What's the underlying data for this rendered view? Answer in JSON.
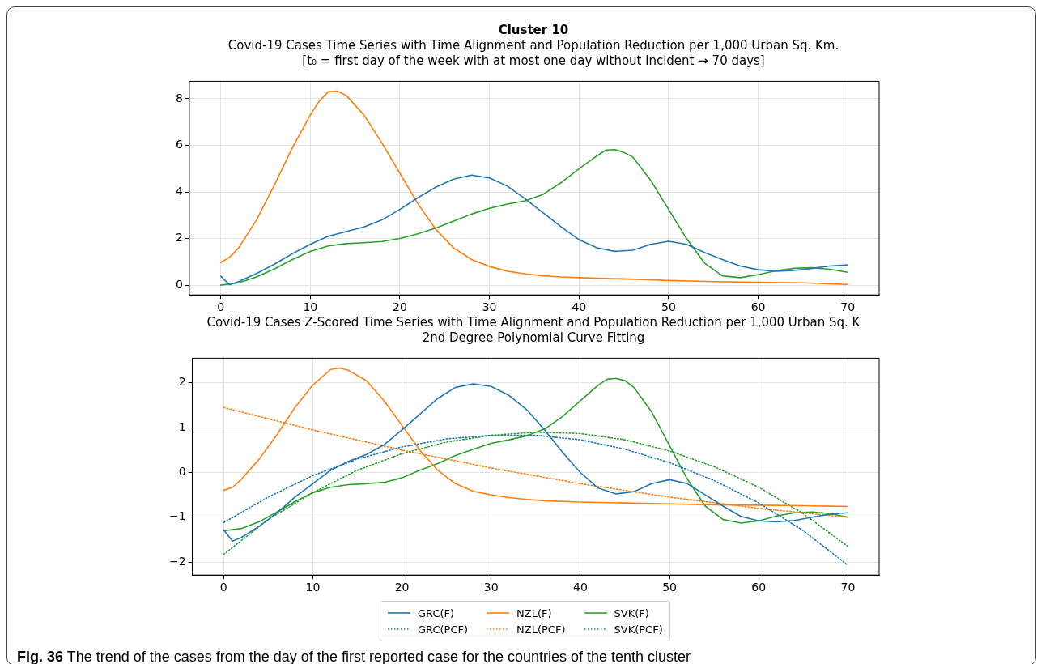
{
  "chart_data": [
    {
      "type": "line",
      "title": "Cluster 10",
      "subtitle": "Covid-19 Cases Time Series with Time Alignment and Population Reduction per 1,000 Urban Sq. Km.\n[t₀ = first day of the week with at most one day without incident  →  70 days]",
      "xlim": [
        -3.5,
        73.5
      ],
      "ylim": [
        -0.42,
        8.75
      ],
      "xticks": [
        0,
        10,
        20,
        30,
        40,
        50,
        60,
        70
      ],
      "yticks": [
        0,
        2,
        4,
        6,
        8
      ],
      "grid": true,
      "line_style": "solid",
      "series": [
        {
          "color": "#1f77b4",
          "x": [
            0,
            1,
            2,
            4,
            6,
            8,
            10,
            12,
            14,
            16,
            18,
            20,
            22,
            24,
            26,
            28,
            30,
            32,
            34,
            36,
            38,
            40,
            42,
            44,
            46,
            48,
            50,
            52,
            54,
            56,
            58,
            60,
            62,
            64,
            66,
            68,
            70
          ],
          "values": [
            0.38,
            0.02,
            0.15,
            0.5,
            0.9,
            1.35,
            1.75,
            2.1,
            2.3,
            2.5,
            2.8,
            3.25,
            3.75,
            4.2,
            4.55,
            4.72,
            4.6,
            4.25,
            3.7,
            3.1,
            2.5,
            1.95,
            1.6,
            1.45,
            1.5,
            1.75,
            1.88,
            1.75,
            1.4,
            1.1,
            0.82,
            0.66,
            0.6,
            0.63,
            0.72,
            0.82,
            0.87
          ]
        },
        {
          "color": "#ff7f0e",
          "x": [
            0,
            1,
            2,
            4,
            6,
            8,
            10,
            11,
            12,
            13,
            14,
            16,
            18,
            20,
            22,
            24,
            26,
            28,
            30,
            32,
            34,
            36,
            38,
            40,
            45,
            50,
            55,
            60,
            65,
            70
          ],
          "values": [
            0.97,
            1.2,
            1.6,
            2.8,
            4.3,
            5.9,
            7.3,
            7.9,
            8.3,
            8.33,
            8.15,
            7.3,
            6.1,
            4.8,
            3.5,
            2.4,
            1.6,
            1.1,
            0.8,
            0.6,
            0.48,
            0.4,
            0.35,
            0.32,
            0.27,
            0.2,
            0.15,
            0.12,
            0.1,
            0.03
          ]
        },
        {
          "color": "#2ca02c",
          "x": [
            0,
            2,
            4,
            6,
            8,
            10,
            12,
            14,
            16,
            18,
            20,
            22,
            24,
            26,
            28,
            30,
            32,
            34,
            36,
            38,
            40,
            42,
            43,
            44,
            45,
            46,
            48,
            50,
            52,
            54,
            56,
            58,
            60,
            62,
            64,
            66,
            68,
            70
          ],
          "values": [
            0,
            0.1,
            0.35,
            0.7,
            1.1,
            1.45,
            1.68,
            1.78,
            1.82,
            1.87,
            2.0,
            2.2,
            2.45,
            2.75,
            3.05,
            3.3,
            3.48,
            3.62,
            3.9,
            4.4,
            5.0,
            5.55,
            5.8,
            5.82,
            5.7,
            5.5,
            4.5,
            3.25,
            2.0,
            0.95,
            0.4,
            0.32,
            0.45,
            0.62,
            0.72,
            0.75,
            0.68,
            0.55
          ]
        }
      ]
    },
    {
      "type": "line",
      "title": "Covid-19 Cases Z-Scored Time Series with Time Alignment and Population Reduction per 1,000 Urban Sq. K",
      "subtitle": "2nd Degree Polynomial Curve Fitting",
      "xlim": [
        -3.5,
        73.5
      ],
      "ylim": [
        -2.29,
        2.55
      ],
      "xticks": [
        0,
        10,
        20,
        30,
        40,
        50,
        60,
        70
      ],
      "yticks": [
        {
          "value": -2,
          "label": "−2"
        },
        {
          "value": -1,
          "label": "−1"
        },
        0,
        1,
        2
      ],
      "grid": true,
      "legend": "bottom",
      "annotations": [
        "Fig. 36 The trend of the cases from the day of the first reported case for the countries of the tenth cluster"
      ],
      "series": [
        {
          "name": "GRC(F)",
          "color": "#1f77b4",
          "line_style": "solid",
          "x": [
            0,
            1,
            2,
            4,
            6,
            8,
            10,
            12,
            14,
            16,
            18,
            20,
            22,
            24,
            26,
            28,
            30,
            32,
            34,
            36,
            38,
            40,
            42,
            44,
            46,
            48,
            50,
            52,
            54,
            56,
            58,
            60,
            62,
            64,
            66,
            68,
            70
          ],
          "values": [
            -1.28,
            -1.53,
            -1.45,
            -1.2,
            -0.9,
            -0.55,
            -0.25,
            0.05,
            0.25,
            0.4,
            0.62,
            0.95,
            1.3,
            1.65,
            1.9,
            1.98,
            1.92,
            1.72,
            1.4,
            0.95,
            0.45,
            0.0,
            -0.35,
            -0.48,
            -0.43,
            -0.25,
            -0.16,
            -0.25,
            -0.5,
            -0.75,
            -0.98,
            -1.08,
            -1.1,
            -1.07,
            -1.0,
            -0.93,
            -0.9
          ]
        },
        {
          "name": "GRC(PCF)",
          "color": "#1f77b4",
          "line_style": "dotted",
          "x": [
            0,
            5,
            10,
            15,
            20,
            25,
            30,
            35,
            40,
            45,
            50,
            55,
            60,
            65,
            70
          ],
          "values": [
            -1.12,
            -0.55,
            -0.07,
            0.3,
            0.57,
            0.75,
            0.83,
            0.83,
            0.73,
            0.52,
            0.22,
            -0.18,
            -0.68,
            -1.3,
            -2.07
          ]
        },
        {
          "name": "NZL(F)",
          "color": "#ff7f0e",
          "line_style": "solid",
          "x": [
            0,
            1,
            2,
            4,
            6,
            8,
            10,
            12,
            13,
            14,
            16,
            18,
            20,
            22,
            24,
            26,
            28,
            30,
            32,
            34,
            36,
            40,
            45,
            50,
            55,
            60,
            65,
            70
          ],
          "values": [
            -0.4,
            -0.33,
            -0.15,
            0.3,
            0.85,
            1.45,
            1.95,
            2.3,
            2.33,
            2.28,
            2.05,
            1.6,
            1.05,
            0.5,
            0.05,
            -0.25,
            -0.42,
            -0.5,
            -0.56,
            -0.6,
            -0.63,
            -0.66,
            -0.68,
            -0.7,
            -0.72,
            -0.73,
            -0.74,
            -0.76
          ]
        },
        {
          "name": "NZL(PCF)",
          "color": "#ff7f0e",
          "line_style": "dotted",
          "x": [
            0,
            10,
            20,
            30,
            40,
            50,
            60,
            70
          ],
          "values": [
            1.45,
            0.95,
            0.5,
            0.1,
            -0.25,
            -0.55,
            -0.8,
            -1.0
          ]
        },
        {
          "name": "SVK(F)",
          "color": "#2ca02c",
          "line_style": "solid",
          "x": [
            0,
            2,
            4,
            6,
            8,
            10,
            12,
            14,
            16,
            18,
            20,
            22,
            24,
            26,
            28,
            30,
            32,
            34,
            36,
            38,
            40,
            42,
            43,
            44,
            45,
            46,
            48,
            50,
            52,
            54,
            56,
            58,
            60,
            62,
            64,
            66,
            68,
            70
          ],
          "values": [
            -1.3,
            -1.25,
            -1.1,
            -0.88,
            -0.65,
            -0.45,
            -0.33,
            -0.27,
            -0.25,
            -0.22,
            -0.12,
            0.05,
            0.2,
            0.38,
            0.52,
            0.65,
            0.73,
            0.82,
            0.97,
            1.25,
            1.6,
            1.95,
            2.08,
            2.1,
            2.05,
            1.9,
            1.35,
            0.6,
            -0.15,
            -0.75,
            -1.05,
            -1.13,
            -1.08,
            -0.97,
            -0.9,
            -0.88,
            -0.92,
            -1.0
          ]
        },
        {
          "name": "SVK(PCF)",
          "color": "#2ca02c",
          "line_style": "dotted",
          "x": [
            0,
            5,
            10,
            15,
            20,
            25,
            30,
            35,
            40,
            45,
            50,
            55,
            60,
            65,
            70
          ],
          "values": [
            -1.83,
            -1.05,
            -0.45,
            0.05,
            0.42,
            0.68,
            0.83,
            0.9,
            0.87,
            0.73,
            0.48,
            0.13,
            -0.33,
            -0.92,
            -1.65
          ]
        }
      ]
    }
  ]
}
